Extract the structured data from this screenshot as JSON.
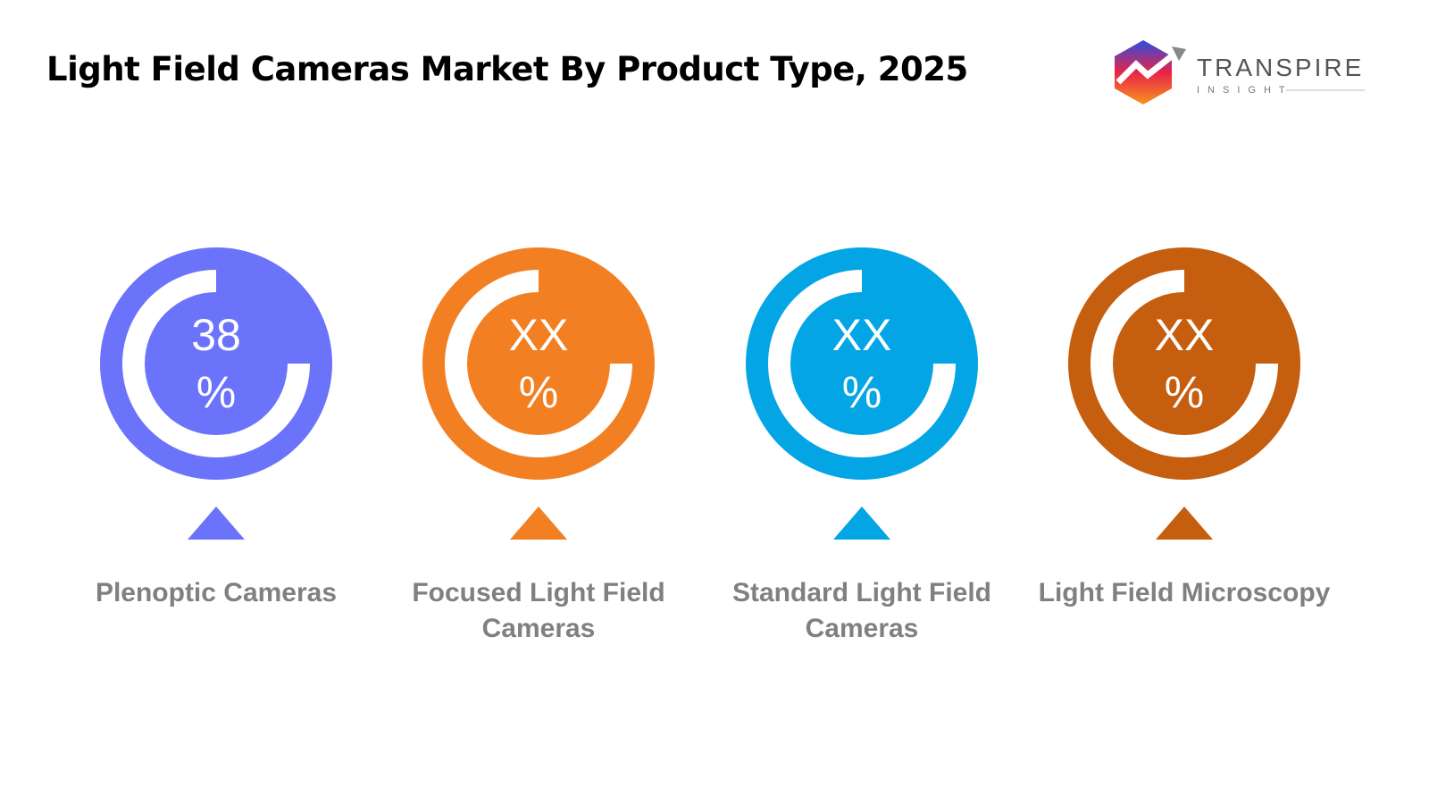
{
  "header": {
    "title": "Light Field Cameras Market By Product Type, 2025",
    "logo": {
      "name": "TRANSPIRE",
      "tagline": "INSIGHT"
    }
  },
  "items": [
    {
      "value": "38",
      "unit": "%",
      "label": "Plenoptic Cameras",
      "color": "#6b73fa"
    },
    {
      "value": "XX",
      "unit": "%",
      "label": "Focused Light Field Cameras",
      "color": "#f28022"
    },
    {
      "value": "XX",
      "unit": "%",
      "label": "Standard Light Field Cameras",
      "color": "#04a5e5"
    },
    {
      "value": "XX",
      "unit": "%",
      "label": "Light Field Microscopy",
      "color": "#c55e0e"
    }
  ]
}
